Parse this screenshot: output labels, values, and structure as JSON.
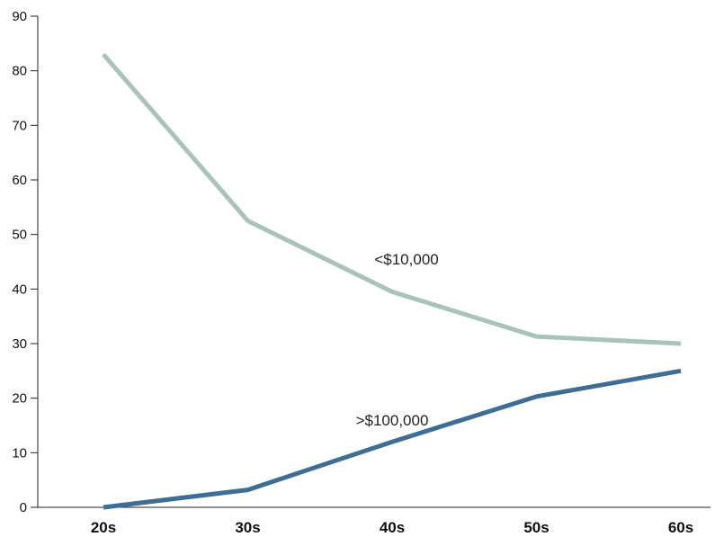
{
  "chart_data": {
    "type": "line",
    "categories": [
      "20s",
      "30s",
      "40s",
      "50s",
      "60s"
    ],
    "ylim": [
      0,
      90
    ],
    "yticks": [
      0,
      10,
      20,
      30,
      40,
      50,
      60,
      70,
      80,
      90
    ],
    "grid": false,
    "series": [
      {
        "name": "<$10,000",
        "values": [
          83,
          52.5,
          39.5,
          31.3,
          30
        ],
        "color": "#a9c3b9",
        "label_anchor_index": 2.1,
        "label_anchor_value": 44.5
      },
      {
        "name": ">$100,000",
        "values": [
          0,
          3.2,
          12,
          20.3,
          25
        ],
        "color": "#3e6e93",
        "label_anchor_index": 2.0,
        "label_anchor_value": 15.0
      }
    ]
  }
}
